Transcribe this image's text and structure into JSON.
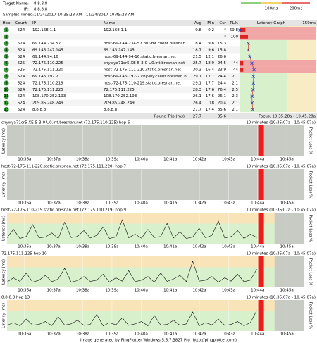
{
  "header": {
    "target_label": "Target Name:",
    "target": "8.8.8.8",
    "ip_label": "IP:",
    "ip": "8.8.8.8",
    "samples_label": "Samples Timed:",
    "samples": "11/24/2017 10:35:28 AM - 11/24/2017 10:45:28 AM",
    "legend": [
      "100ms",
      "200ms"
    ]
  },
  "table": {
    "columns": [
      "Hop",
      "Count",
      "IP",
      "Name",
      "Avg",
      "Min",
      "Cur",
      "PL%",
      "Latency Graph",
      "159ms"
    ],
    "graph_max": 159,
    "rows": [
      [
        1,
        524,
        "192.168.1.1",
        "192.168.1.1",
        0.8,
        0.2,
        "*",
        69.8
      ],
      [
        2,
        "-",
        "-",
        null,
        null,
        null,
        "*",
        100.0
      ],
      [
        3,
        524,
        "69.144.234.57",
        "host-69-144-234-57.but-mt.client.bresnan.",
        18.4,
        9.8,
        15.3,
        null
      ],
      [
        4,
        524,
        "69.145.247.145",
        "69.145.247.145",
        18.7,
        9.6,
        15.8,
        null
      ],
      [
        5,
        524,
        "69.144.94.16",
        "host-69-144-94-16.static.bresnan.net",
        21.5,
        12.1,
        26.6,
        null
      ],
      [
        6,
        525,
        "72.175.110.225",
        "chywya71cr5-XE-5-3-0-U0.int.bresnan.net",
        25.7,
        18.9,
        24.5,
        44.0
      ],
      [
        7,
        525,
        "72.175.111.220",
        "host-72-175-111-220.static.bresnan.net",
        30.3,
        16.4,
        23.9,
        44.0
      ],
      [
        8,
        524,
        "69.146.192.2",
        "host-69-146-192-2.chy-wy.client.bresnan.n",
        29.1,
        17.7,
        24.4,
        2.1
      ],
      [
        9,
        524,
        "72.175.110.219",
        "host-72-175-110-219.static.bresnan.net",
        29.1,
        17.7,
        24.4,
        2.1
      ],
      [
        10,
        524,
        "72.175.111.225",
        "72.175.111.225",
        28.3,
        17.6,
        76.4,
        2.5
      ],
      [
        11,
        524,
        "108.170.252.193",
        "108.170.252.193",
        26.1,
        17.6,
        26.1,
        2.3
      ],
      [
        12,
        524,
        "209.85.248.249",
        "209.85.248.249",
        26.4,
        18.0,
        20.4,
        2.1
      ],
      [
        13,
        524,
        "8.8.8.8",
        "8.8.8.8",
        27.7,
        17.4,
        85.6,
        2.1
      ]
    ],
    "round_trip": {
      "label": "Round Trip (ms)",
      "avg": 27.7,
      "cur": 85.6,
      "focus": "Focus: 10:35:28a - 10:45:28a"
    }
  },
  "graphs": [
    {
      "title": "chywya71cr5-XE-5-3-0-U0.int.bresnan.net (72.175.110.225) hop 6",
      "range": "10 minutes (10:35:07a - 10:45:07a)"
    },
    {
      "title": "host-72-175-111-220.static.bresnan.net (72.175.111.220) hop 7",
      "range": "10 minutes (10:35:07a - 10:45:07a)"
    },
    {
      "title": "host-72-175-110-219.static.bresnan.net (72.175.110.219) hop 9",
      "range": "10 minutes (10:35:07a - 10:45:07a)",
      "values": [
        25,
        60,
        22,
        30,
        80,
        24,
        28,
        45,
        22,
        90,
        26,
        30,
        55,
        24,
        35,
        70,
        22,
        28,
        100,
        25,
        40,
        23,
        60,
        26,
        30,
        85,
        24,
        50,
        22,
        28,
        65,
        25,
        35,
        95,
        24,
        30,
        55,
        22,
        40,
        26
      ]
    },
    {
      "title": "72.175.111.225 hop 10",
      "range": "10 minutes (10:35:07a - 10:45:07a)",
      "values": [
        22,
        40,
        25,
        60,
        22,
        30,
        50,
        24,
        35,
        80,
        22,
        28,
        45,
        25,
        30,
        55,
        22,
        40,
        26,
        70,
        24,
        30,
        45,
        22,
        60,
        25,
        35,
        50,
        24,
        110,
        26,
        30,
        45,
        22,
        40,
        26,
        55,
        24,
        30,
        76
      ]
    },
    {
      "title": "8.8.8.8 hop 13",
      "range": "10 minutes (10:35:07a - 10:45:07a)",
      "values": [
        24,
        35,
        22,
        50,
        25,
        28,
        40,
        23,
        60,
        25,
        30,
        45,
        24,
        28,
        70,
        22,
        35,
        26,
        55,
        24,
        30,
        40,
        22,
        65,
        25,
        28,
        45,
        24,
        30,
        80,
        22,
        35,
        26,
        50,
        24,
        28,
        40,
        22,
        35,
        86
      ]
    }
  ],
  "graph_ylim": [
    0,
    130
  ],
  "xticks": [
    "10:36a",
    "10:37a",
    "10:38a",
    "10:39a",
    "10:40a",
    "10:41a",
    "10:42a",
    "10:43a",
    "10:44a",
    "10:45a"
  ],
  "y_label": "Latency (ms)",
  "y2_label": "Packet Loss %",
  "footer": "Image generated by PingPlotter Windows 5.5.7.3827 Pro (http://pingplotter.com)"
}
